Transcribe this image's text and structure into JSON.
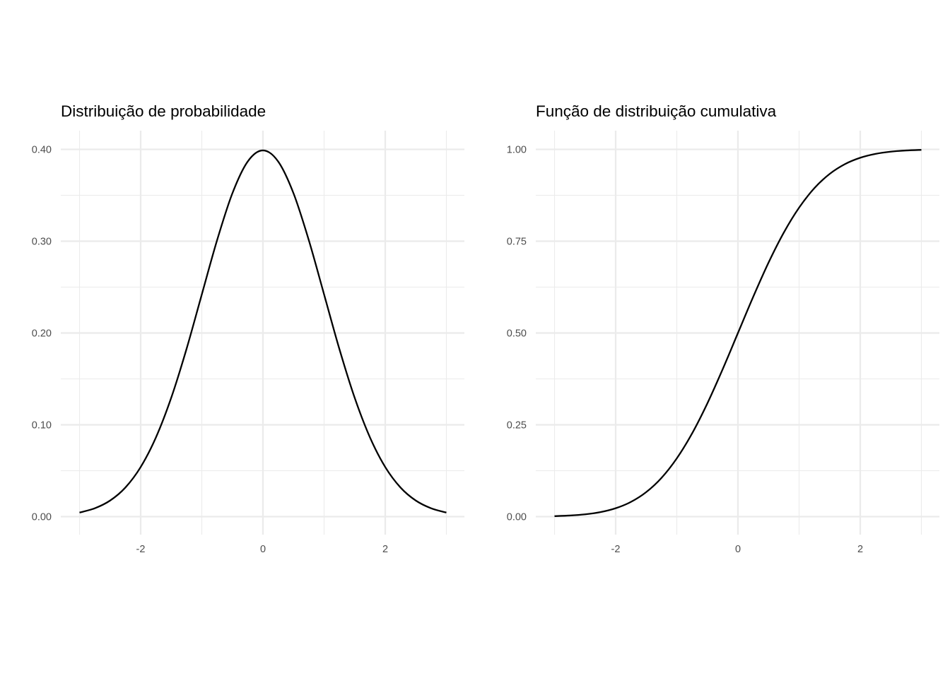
{
  "chart_data": [
    {
      "type": "line",
      "title": "Distribuição de probabilidade",
      "xlabel": "",
      "ylabel": "",
      "xlim": [
        -3,
        3
      ],
      "ylim": [
        0,
        0.4
      ],
      "x_ticks": [
        -2,
        0,
        2
      ],
      "x_tick_labels": [
        "-2",
        "0",
        "2"
      ],
      "x_minor": [
        -3,
        -1,
        1,
        3
      ],
      "y_ticks": [
        0,
        0.1,
        0.2,
        0.3,
        0.4
      ],
      "y_tick_labels": [
        "0.00",
        "0.10",
        "0.20",
        "0.30",
        "0.40"
      ],
      "y_minor": [
        0.05,
        0.15,
        0.25,
        0.35
      ],
      "grid": true,
      "line_color": "#000000",
      "series": [
        {
          "x": [
            -3.0,
            -2.75,
            -2.5,
            -2.25,
            -2.0,
            -1.75,
            -1.5,
            -1.25,
            -1.0,
            -0.75,
            -0.5,
            -0.25,
            0.0,
            0.25,
            0.5,
            0.75,
            1.0,
            1.25,
            1.5,
            1.75,
            2.0,
            2.25,
            2.5,
            2.75,
            3.0
          ],
          "values": [
            0.0044,
            0.0091,
            0.0175,
            0.0317,
            0.054,
            0.0863,
            0.1295,
            0.1826,
            0.242,
            0.3011,
            0.3521,
            0.3867,
            0.3989,
            0.3867,
            0.3521,
            0.3011,
            0.242,
            0.1826,
            0.1295,
            0.0863,
            0.054,
            0.0317,
            0.0175,
            0.0091,
            0.0044
          ]
        }
      ]
    },
    {
      "type": "line",
      "title": "Função de distribuição cumulativa",
      "xlabel": "",
      "ylabel": "",
      "xlim": [
        -3,
        3
      ],
      "ylim": [
        0,
        1
      ],
      "x_ticks": [
        -2,
        0,
        2
      ],
      "x_tick_labels": [
        "-2",
        "0",
        "2"
      ],
      "x_minor": [
        -3,
        -1,
        1,
        3
      ],
      "y_ticks": [
        0,
        0.25,
        0.5,
        0.75,
        1
      ],
      "y_tick_labels": [
        "0.00",
        "0.25",
        "0.50",
        "0.75",
        "1.00"
      ],
      "y_minor": [
        0.125,
        0.375,
        0.625,
        0.875
      ],
      "grid": true,
      "line_color": "#000000",
      "series": [
        {
          "x": [
            -3.0,
            -2.75,
            -2.5,
            -2.25,
            -2.0,
            -1.75,
            -1.5,
            -1.25,
            -1.0,
            -0.75,
            -0.5,
            -0.25,
            0.0,
            0.25,
            0.5,
            0.75,
            1.0,
            1.25,
            1.5,
            1.75,
            2.0,
            2.25,
            2.5,
            2.75,
            3.0
          ],
          "values": [
            0.0013,
            0.003,
            0.0062,
            0.0122,
            0.0228,
            0.0401,
            0.0668,
            0.1056,
            0.1587,
            0.2266,
            0.3085,
            0.4013,
            0.5,
            0.5987,
            0.6915,
            0.7734,
            0.8413,
            0.8944,
            0.9332,
            0.9599,
            0.9772,
            0.9878,
            0.9938,
            0.997,
            0.9987
          ]
        }
      ]
    }
  ]
}
